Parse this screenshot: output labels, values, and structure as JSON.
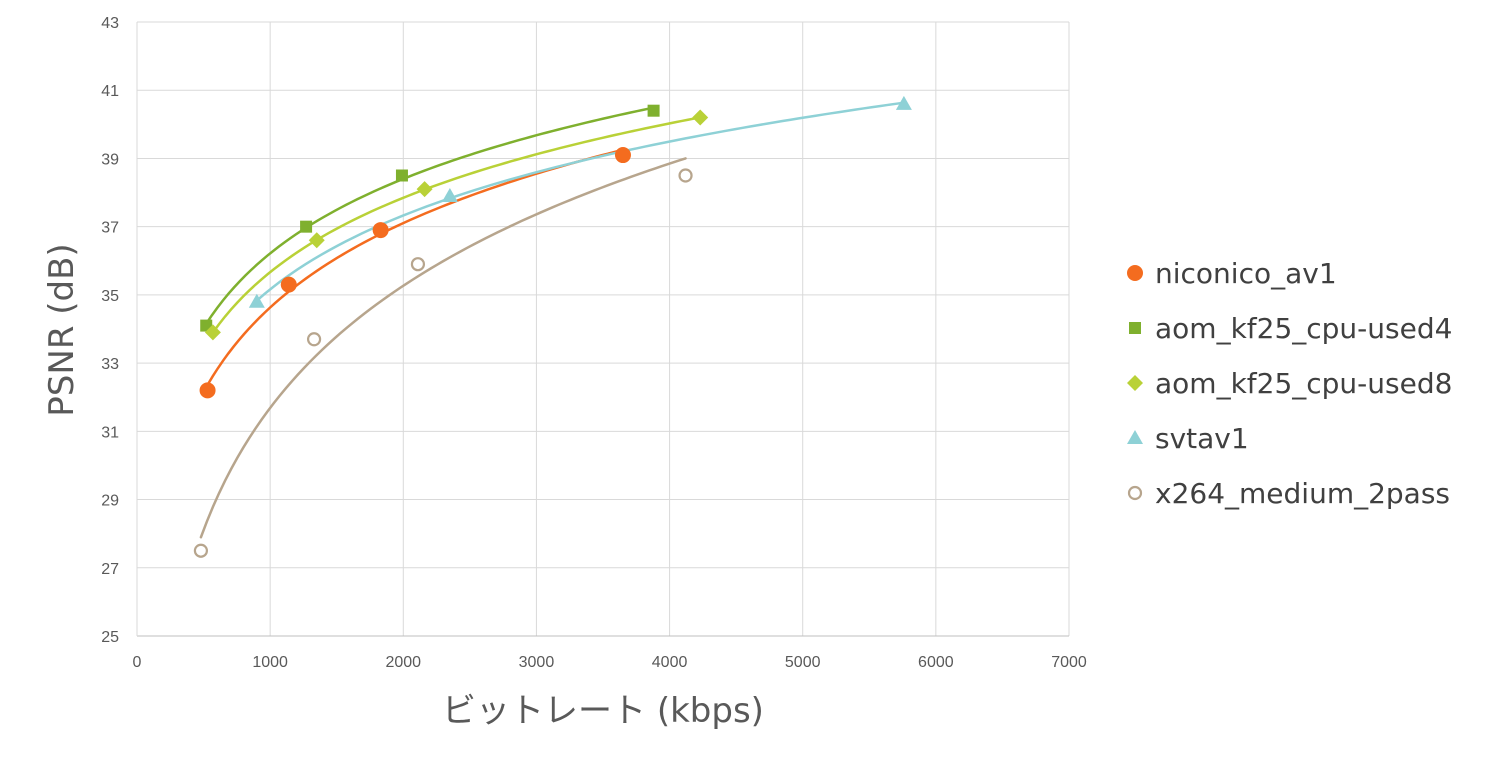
{
  "chart_data": {
    "type": "scatter",
    "xlabel": "ビットレート (kbps)",
    "ylabel": "PSNR (dB)",
    "xlim": [
      0,
      7000
    ],
    "ylim": [
      25,
      43
    ],
    "xticks": [
      0,
      1000,
      2000,
      3000,
      4000,
      5000,
      6000,
      7000
    ],
    "yticks": [
      25,
      27,
      29,
      31,
      33,
      35,
      37,
      39,
      41,
      43
    ],
    "grid": true,
    "legend_position": "right",
    "trendline": "logarithmic",
    "series": [
      {
        "name": "niconico_av1",
        "marker": "circle",
        "color": "#F46C1F",
        "x": [
          530,
          1140,
          1830,
          3650
        ],
        "y": [
          32.2,
          35.3,
          36.9,
          39.1
        ]
      },
      {
        "name": "aom_kf25_cpu-used4",
        "marker": "square",
        "color": "#7FB02E",
        "x": [
          520,
          1270,
          1990,
          3880
        ],
        "y": [
          34.1,
          37.0,
          38.5,
          40.4
        ]
      },
      {
        "name": "aom_kf25_cpu-used8",
        "marker": "diamond",
        "color": "#B9D137",
        "x": [
          570,
          1350,
          2160,
          4230
        ],
        "y": [
          33.9,
          36.6,
          38.1,
          40.2
        ]
      },
      {
        "name": "svtav1",
        "marker": "triangle",
        "color": "#8ED1D6",
        "x": [
          900,
          2350,
          5760
        ],
        "y": [
          34.8,
          37.9,
          40.6
        ]
      },
      {
        "name": "x264_medium_2pass",
        "marker": "open-circle",
        "color": "#B7A58D",
        "x": [
          480,
          1330,
          2110,
          4120
        ],
        "y": [
          27.5,
          33.7,
          35.9,
          38.5
        ]
      }
    ]
  }
}
